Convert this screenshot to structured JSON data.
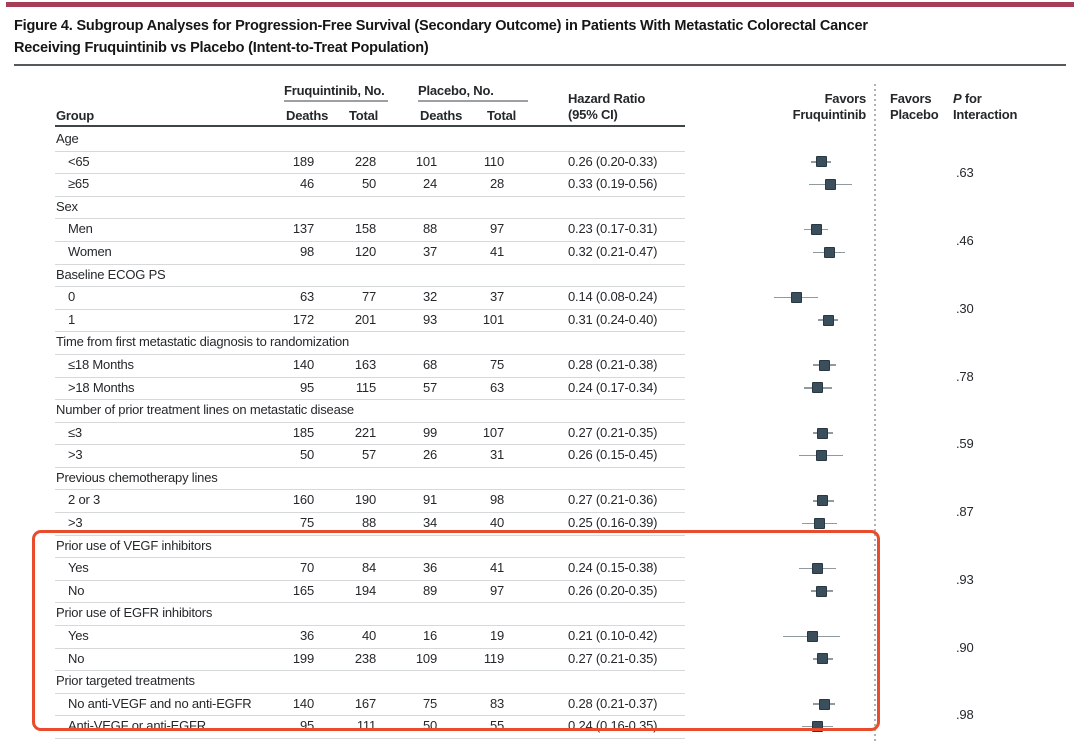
{
  "figure_title": {
    "line1": "Figure 4. Subgroup Analyses for Progression-Free Survival (Secondary Outcome) in Patients With Metastatic Colorectal Cancer",
    "line2": "Receiving Fruquintinib vs Placebo (Intent-to-Treat Population)"
  },
  "header": {
    "group": "Group",
    "fruquintinib_no": "Fruquintinib, No.",
    "placebo_no": "Placebo, No.",
    "deaths_1": "Deaths",
    "total_1": "Total",
    "deaths_2": "Deaths",
    "total_2": "Total",
    "hazard_ratio_line1": "Hazard Ratio",
    "hazard_ratio_line2": "(95% CI)",
    "favors_fruquintinib_line1": "Favors",
    "favors_fruquintinib_line2": "Fruquintinib",
    "favors_placebo_line1": "Favors",
    "favors_placebo_line2": "Placebo",
    "p_italic": "P",
    "p_rest": " for",
    "p_line2": "Interaction"
  },
  "styles": {
    "topbar_color": "#a63e56",
    "marker_color": "#3a4f5b",
    "ci_color": "#8f9ba1",
    "highlight_color": "#e84c2c"
  },
  "annotation": {
    "highlighted_categories": [
      "Prior use of VEGF inhibitors",
      "Prior use of EGFR inhibitors",
      "Prior targeted treatments"
    ]
  },
  "chart_data": {
    "type": "scatter",
    "subtype": "forest-plot",
    "title": "Subgroup Analyses for Progression-Free Survival (Secondary Outcome), Fruquintinib vs Placebo",
    "axis": {
      "scale": "log",
      "null_value": 1.0,
      "direction_left_label": "Favors Fruquintinib",
      "direction_right_label": "Favors Placebo"
    },
    "groups": [
      {
        "category": "Age",
        "p_interaction": ".63",
        "rows": [
          {
            "label": "<65",
            "fruquintinib_deaths": 189,
            "fruquintinib_total": 228,
            "placebo_deaths": 101,
            "placebo_total": 110,
            "hr": 0.26,
            "ci_low": 0.2,
            "ci_high": 0.33,
            "hr_text": "0.26 (0.20-0.33)"
          },
          {
            "label": "≥65",
            "fruquintinib_deaths": 46,
            "fruquintinib_total": 50,
            "placebo_deaths": 24,
            "placebo_total": 28,
            "hr": 0.33,
            "ci_low": 0.19,
            "ci_high": 0.56,
            "hr_text": "0.33 (0.19-0.56)"
          }
        ]
      },
      {
        "category": "Sex",
        "p_interaction": ".46",
        "rows": [
          {
            "label": "Men",
            "fruquintinib_deaths": 137,
            "fruquintinib_total": 158,
            "placebo_deaths": 88,
            "placebo_total": 97,
            "hr": 0.23,
            "ci_low": 0.17,
            "ci_high": 0.31,
            "hr_text": "0.23 (0.17-0.31)"
          },
          {
            "label": "Women",
            "fruquintinib_deaths": 98,
            "fruquintinib_total": 120,
            "placebo_deaths": 37,
            "placebo_total": 41,
            "hr": 0.32,
            "ci_low": 0.21,
            "ci_high": 0.47,
            "hr_text": "0.32 (0.21-0.47)"
          }
        ]
      },
      {
        "category": "Baseline ECOG PS",
        "p_interaction": ".30",
        "rows": [
          {
            "label": "0",
            "fruquintinib_deaths": 63,
            "fruquintinib_total": 77,
            "placebo_deaths": 32,
            "placebo_total": 37,
            "hr": 0.14,
            "ci_low": 0.08,
            "ci_high": 0.24,
            "hr_text": "0.14 (0.08-0.24)"
          },
          {
            "label": "1",
            "fruquintinib_deaths": 172,
            "fruquintinib_total": 201,
            "placebo_deaths": 93,
            "placebo_total": 101,
            "hr": 0.31,
            "ci_low": 0.24,
            "ci_high": 0.4,
            "hr_text": "0.31 (0.24-0.40)"
          }
        ]
      },
      {
        "category": "Time from first metastatic diagnosis to randomization",
        "p_interaction": ".78",
        "rows": [
          {
            "label": "≤18 Months",
            "fruquintinib_deaths": 140,
            "fruquintinib_total": 163,
            "placebo_deaths": 68,
            "placebo_total": 75,
            "hr": 0.28,
            "ci_low": 0.21,
            "ci_high": 0.38,
            "hr_text": "0.28 (0.21-0.38)"
          },
          {
            "label": ">18 Months",
            "fruquintinib_deaths": 95,
            "fruquintinib_total": 115,
            "placebo_deaths": 57,
            "placebo_total": 63,
            "hr": 0.24,
            "ci_low": 0.17,
            "ci_high": 0.34,
            "hr_text": "0.24 (0.17-0.34)"
          }
        ]
      },
      {
        "category": "Number of prior treatment lines on metastatic disease",
        "p_interaction": ".59",
        "rows": [
          {
            "label": "≤3",
            "fruquintinib_deaths": 185,
            "fruquintinib_total": 221,
            "placebo_deaths": 99,
            "placebo_total": 107,
            "hr": 0.27,
            "ci_low": 0.21,
            "ci_high": 0.35,
            "hr_text": "0.27 (0.21-0.35)"
          },
          {
            "label": ">3",
            "fruquintinib_deaths": 50,
            "fruquintinib_total": 57,
            "placebo_deaths": 26,
            "placebo_total": 31,
            "hr": 0.26,
            "ci_low": 0.15,
            "ci_high": 0.45,
            "hr_text": "0.26 (0.15-0.45)"
          }
        ]
      },
      {
        "category": "Previous chemotherapy lines",
        "p_interaction": ".87",
        "rows": [
          {
            "label": "2 or 3",
            "fruquintinib_deaths": 160,
            "fruquintinib_total": 190,
            "placebo_deaths": 91,
            "placebo_total": 98,
            "hr": 0.27,
            "ci_low": 0.21,
            "ci_high": 0.36,
            "hr_text": "0.27 (0.21-0.36)"
          },
          {
            "label": ">3",
            "fruquintinib_deaths": 75,
            "fruquintinib_total": 88,
            "placebo_deaths": 34,
            "placebo_total": 40,
            "hr": 0.25,
            "ci_low": 0.16,
            "ci_high": 0.39,
            "hr_text": "0.25 (0.16-0.39)"
          }
        ]
      },
      {
        "category": "Prior use of VEGF inhibitors",
        "p_interaction": ".93",
        "rows": [
          {
            "label": "Yes",
            "fruquintinib_deaths": 70,
            "fruquintinib_total": 84,
            "placebo_deaths": 36,
            "placebo_total": 41,
            "hr": 0.24,
            "ci_low": 0.15,
            "ci_high": 0.38,
            "hr_text": "0.24 (0.15-0.38)"
          },
          {
            "label": "No",
            "fruquintinib_deaths": 165,
            "fruquintinib_total": 194,
            "placebo_deaths": 89,
            "placebo_total": 97,
            "hr": 0.26,
            "ci_low": 0.2,
            "ci_high": 0.35,
            "hr_text": "0.26 (0.20-0.35)"
          }
        ]
      },
      {
        "category": "Prior use of EGFR inhibitors",
        "p_interaction": ".90",
        "rows": [
          {
            "label": "Yes",
            "fruquintinib_deaths": 36,
            "fruquintinib_total": 40,
            "placebo_deaths": 16,
            "placebo_total": 19,
            "hr": 0.21,
            "ci_low": 0.1,
            "ci_high": 0.42,
            "hr_text": "0.21 (0.10-0.42)"
          },
          {
            "label": "No",
            "fruquintinib_deaths": 199,
            "fruquintinib_total": 238,
            "placebo_deaths": 109,
            "placebo_total": 119,
            "hr": 0.27,
            "ci_low": 0.21,
            "ci_high": 0.35,
            "hr_text": "0.27 (0.21-0.35)"
          }
        ]
      },
      {
        "category": "Prior targeted treatments",
        "p_interaction": ".98",
        "rows": [
          {
            "label": "No anti-VEGF and no anti-EGFR",
            "fruquintinib_deaths": 140,
            "fruquintinib_total": 167,
            "placebo_deaths": 75,
            "placebo_total": 83,
            "hr": 0.28,
            "ci_low": 0.21,
            "ci_high": 0.37,
            "hr_text": "0.28 (0.21-0.37)"
          },
          {
            "label": "Anti-VEGF or anti-EGFR",
            "fruquintinib_deaths": 95,
            "fruquintinib_total": 111,
            "placebo_deaths": 50,
            "placebo_total": 55,
            "hr": 0.24,
            "ci_low": 0.16,
            "ci_high": 0.35,
            "hr_text": "0.24 (0.16-0.35)"
          }
        ]
      }
    ]
  }
}
